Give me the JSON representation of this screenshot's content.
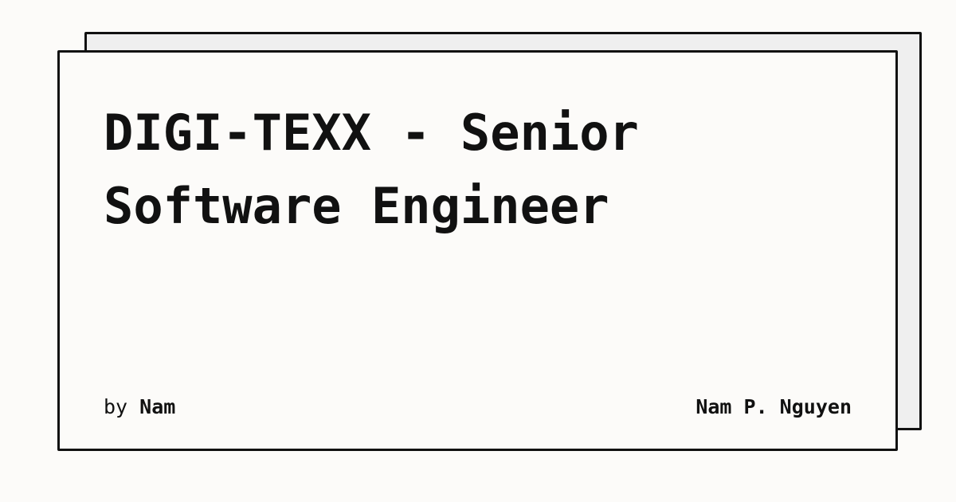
{
  "post": {
    "title": "DIGI-TEXX - Senior Software Engineer",
    "by_label": "by",
    "author": "Nam"
  },
  "site": {
    "name": "Nam P. Nguyen"
  },
  "colors": {
    "background": "#fcfbf9",
    "card_back": "#efefef",
    "ink": "#111111"
  }
}
